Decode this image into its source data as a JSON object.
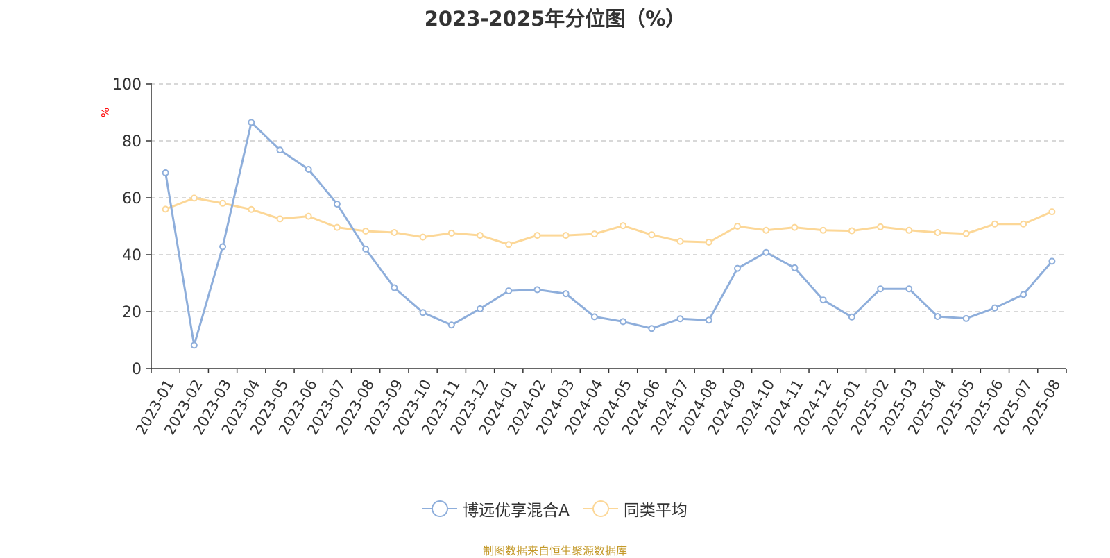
{
  "source_note": "制图数据来自恒生聚源数据库",
  "chart_data": {
    "type": "line",
    "title": "2023-2025年分位图（%）",
    "ylabel": "%",
    "xlabel": "",
    "ylim": [
      0,
      100
    ],
    "yticks": [
      0,
      20,
      40,
      60,
      80,
      100
    ],
    "grid": true,
    "legend_position": "bottom",
    "categories": [
      "2023-01",
      "2023-02",
      "2023-03",
      "2023-04",
      "2023-05",
      "2023-06",
      "2023-07",
      "2023-08",
      "2023-09",
      "2023-10",
      "2023-11",
      "2023-12",
      "2024-01",
      "2024-02",
      "2024-03",
      "2024-04",
      "2024-05",
      "2024-06",
      "2024-07",
      "2024-08",
      "2024-09",
      "2024-10",
      "2024-11",
      "2024-12",
      "2025-01",
      "2025-02",
      "2025-03",
      "2025-04",
      "2025-05",
      "2025-06",
      "2025-07",
      "2025-08"
    ],
    "series": [
      {
        "name": "博远优享混合A",
        "color": "#8eaedb",
        "values": [
          68.8,
          8.2,
          42.8,
          86.5,
          76.8,
          70.0,
          57.8,
          42.0,
          28.4,
          19.7,
          15.3,
          21.0,
          27.3,
          27.7,
          26.3,
          18.2,
          16.5,
          14.1,
          17.5,
          17.0,
          35.2,
          40.8,
          35.4,
          24.1,
          18.1,
          28.0,
          28.0,
          18.3,
          17.6,
          21.3,
          26.0,
          37.7
        ]
      },
      {
        "name": "同类平均",
        "color": "#fcd797",
        "values": [
          56.0,
          59.9,
          58.1,
          55.9,
          52.6,
          53.5,
          49.6,
          48.3,
          47.8,
          46.2,
          47.6,
          46.8,
          43.6,
          46.8,
          46.8,
          47.3,
          50.2,
          47.0,
          44.7,
          44.4,
          50.0,
          48.6,
          49.6,
          48.6,
          48.4,
          49.8,
          48.6,
          47.8,
          47.4,
          50.8,
          50.8,
          55.1
        ]
      }
    ]
  }
}
